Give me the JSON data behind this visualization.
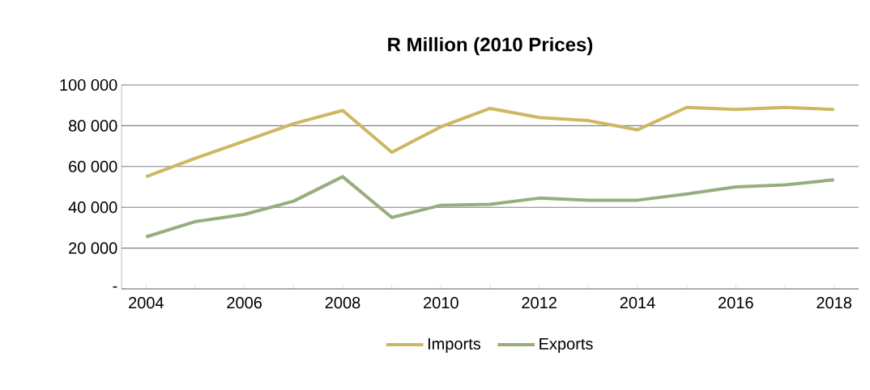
{
  "chart_data": {
    "type": "line",
    "title": "R Million (2010 Prices)",
    "categories": [
      "2004",
      null,
      "2006",
      null,
      "2008",
      null,
      "2010",
      null,
      "2012",
      null,
      "2014",
      null,
      "2016",
      null,
      "2018"
    ],
    "series": [
      {
        "name": "Imports",
        "color": "#cdb862",
        "values": [
          55000,
          64000,
          72500,
          81000,
          87500,
          67000,
          79500,
          88500,
          84000,
          82500,
          78000,
          89000,
          88000,
          89000,
          88000
        ]
      },
      {
        "name": "Exports",
        "color": "#98ad7c",
        "values": [
          25500,
          33000,
          36500,
          43000,
          55000,
          35000,
          41000,
          41500,
          44500,
          43500,
          43500,
          46500,
          50000,
          51000,
          53500
        ]
      }
    ],
    "ylim": [
      0,
      100000
    ],
    "yticks": [
      {
        "value": 0,
        "label": "-"
      },
      {
        "value": 20000,
        "label": "20 000"
      },
      {
        "value": 40000,
        "label": "40 000"
      },
      {
        "value": 60000,
        "label": "60 000"
      },
      {
        "value": 80000,
        "label": "80 000"
      },
      {
        "value": 100000,
        "label": "100 000"
      }
    ],
    "grid": "y",
    "legend": "bottom",
    "marker": "none",
    "line_style": "solid"
  }
}
